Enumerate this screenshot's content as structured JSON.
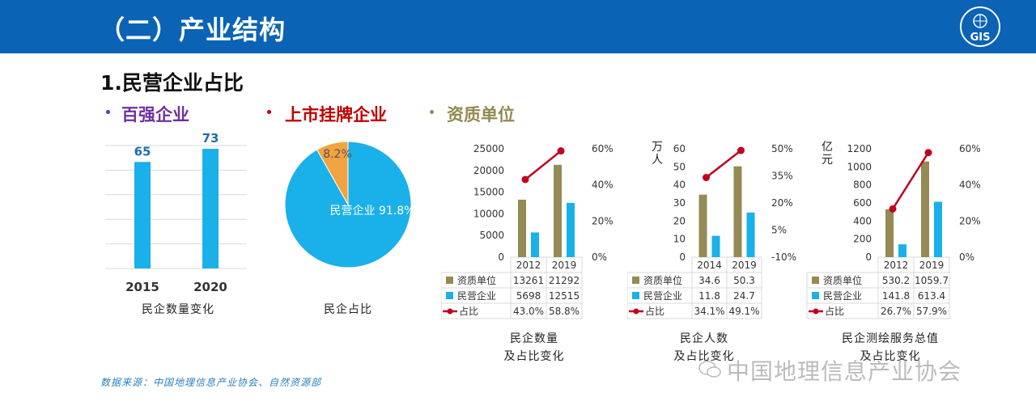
{
  "header": {
    "title": "（二）产业结构",
    "logo_text": "GIS"
  },
  "section": {
    "title": "1.民营企业占比"
  },
  "categories": [
    {
      "label": "百强企业",
      "color": "#7030a0",
      "dot_color": "#7030a0"
    },
    {
      "label": "上市挂牌企业",
      "color": "#c00000",
      "dot_color": "#c00000"
    },
    {
      "label": "资质单位",
      "color": "#938953",
      "dot_color": "#938953"
    }
  ],
  "colors": {
    "bar_blue": "#1ab0ea",
    "bar_olive": "#948a54",
    "line_red": "#c0001e",
    "pie_blue": "#1ab0ea",
    "pie_orange": "#f2a341",
    "header_blue": "#0b63b5"
  },
  "captions": {
    "c1": "民企数量变化",
    "c2": "民企占比",
    "c3a": "民企数量",
    "c3b": "及占比变化",
    "c4a": "民企人数",
    "c4b": "及占比变化",
    "c5a": "民企测绘服务总值",
    "c5b": "及占比变化"
  },
  "source": "数据来源：中国地理信息产业协会、自然资源部",
  "watermark": "中国地理信息产业协会",
  "chart_data": [
    {
      "type": "bar",
      "categories": [
        "2015",
        "2020"
      ],
      "values": [
        65,
        73
      ],
      "ylim": [
        0,
        75
      ]
    },
    {
      "type": "pie",
      "labels": [
        "民营企业",
        ""
      ],
      "values": [
        91.8,
        8.2
      ],
      "value_labels": [
        "91.8%",
        "8.2%"
      ]
    },
    {
      "type": "bar",
      "categories": [
        "2012",
        "2019"
      ],
      "y_ticks": [
        "25000",
        "20000",
        "15000",
        "10000",
        "5000",
        "0"
      ],
      "ylim": [
        0,
        25000
      ],
      "y2_ticks": [
        "60%",
        "40%",
        "20%",
        "0%"
      ],
      "y2lim": [
        0,
        60
      ],
      "yunit": "",
      "series": [
        {
          "name": "资质单位",
          "values": [
            13261,
            21292
          ],
          "labels": [
            "13261",
            "21292"
          ]
        },
        {
          "name": "民营企业",
          "values": [
            5698,
            12515
          ],
          "labels": [
            "5698",
            "12515"
          ]
        },
        {
          "name": "占比",
          "type": "line",
          "values": [
            43.0,
            58.8
          ],
          "labels": [
            "43.0%",
            "58.8%"
          ]
        }
      ]
    },
    {
      "type": "bar",
      "categories": [
        "2014",
        "2019"
      ],
      "y_ticks": [
        "60",
        "50",
        "40",
        "30",
        "20",
        "10",
        "0"
      ],
      "ylim": [
        0,
        60
      ],
      "y2_ticks": [
        "50%",
        "35%",
        "20%",
        "5%",
        "-10%"
      ],
      "y2lim": [
        -10,
        50
      ],
      "yunit": "万人",
      "series": [
        {
          "name": "资质单位",
          "values": [
            34.6,
            50.3
          ],
          "labels": [
            "34.6",
            "50.3"
          ]
        },
        {
          "name": "民营企业",
          "values": [
            11.8,
            24.7
          ],
          "labels": [
            "11.8",
            "24.7"
          ]
        },
        {
          "name": "占比",
          "type": "line",
          "values": [
            34.1,
            49.1
          ],
          "labels": [
            "34.1%",
            "49.1%"
          ]
        }
      ]
    },
    {
      "type": "bar",
      "categories": [
        "2012",
        "2019"
      ],
      "y_ticks": [
        "1200",
        "1000",
        "800",
        "600",
        "400",
        "200",
        "0"
      ],
      "ylim": [
        0,
        1200
      ],
      "y2_ticks": [
        "60%",
        "40%",
        "20%",
        "0%"
      ],
      "y2lim": [
        0,
        60
      ],
      "yunit": "亿元",
      "series": [
        {
          "name": "资质单位",
          "values": [
            530.2,
            1059.7
          ],
          "labels": [
            "530.2",
            "1059.7"
          ]
        },
        {
          "name": "民营企业",
          "values": [
            141.8,
            613.4
          ],
          "labels": [
            "141.8",
            "613.4"
          ]
        },
        {
          "name": "占比",
          "type": "line",
          "values": [
            26.7,
            57.9
          ],
          "labels": [
            "26.7%",
            "57.9%"
          ]
        }
      ]
    }
  ]
}
